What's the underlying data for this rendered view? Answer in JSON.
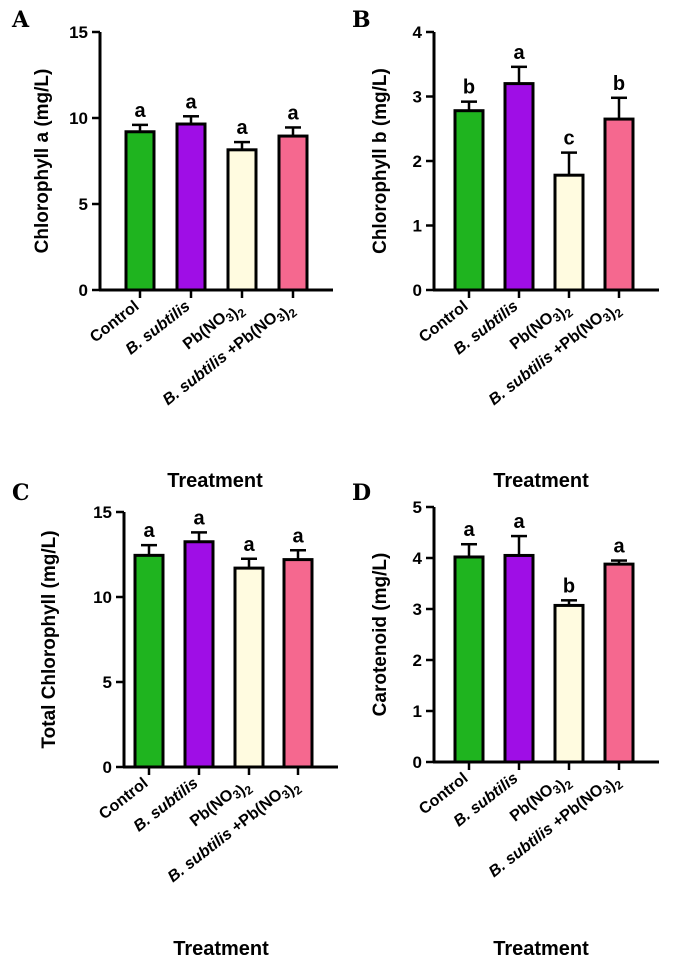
{
  "chart_data": [
    {
      "type": "bar",
      "panel": "A",
      "categories": [
        "Control",
        "B. subtilis",
        "Pb(NO3)2",
        "B. subtilis +Pb(NO3)2"
      ],
      "values": [
        9.2,
        9.65,
        8.15,
        8.95
      ],
      "errors": [
        0.4,
        0.45,
        0.45,
        0.5
      ],
      "significance": [
        "a",
        "a",
        "a",
        "a"
      ],
      "colors": [
        "#1fb41f",
        "#9f0ee6",
        "#fffbe0",
        "#f5688f"
      ],
      "ylabel": "Chlorophyll a (mg/L)",
      "xlabel": "",
      "ylim": [
        0,
        15
      ],
      "yticks": [
        0,
        5,
        10,
        15
      ]
    },
    {
      "type": "bar",
      "panel": "B",
      "categories": [
        "Control",
        "B. subtilis",
        "Pb(NO3)2",
        "B. subtilis +Pb(NO3)2"
      ],
      "values": [
        2.78,
        3.2,
        1.78,
        2.65
      ],
      "errors": [
        0.14,
        0.26,
        0.35,
        0.33
      ],
      "significance": [
        "b",
        "a",
        "c",
        "b"
      ],
      "colors": [
        "#1fb41f",
        "#9f0ee6",
        "#fffbe0",
        "#f5688f"
      ],
      "ylabel": "Chlorophyll b (mg/L)",
      "xlabel": "Treatment",
      "ylim": [
        0,
        4
      ],
      "yticks": [
        0,
        1,
        2,
        3,
        4
      ]
    },
    {
      "type": "bar",
      "panel": "C",
      "categories": [
        "Control",
        "B. subtilis",
        "Pb(NO3)2",
        "B. subtilis +Pb(NO3)2"
      ],
      "values": [
        12.45,
        13.25,
        11.7,
        12.2
      ],
      "errors": [
        0.6,
        0.55,
        0.55,
        0.55
      ],
      "significance": [
        "a",
        "a",
        "a",
        "a"
      ],
      "colors": [
        "#1fb41f",
        "#9f0ee6",
        "#fffbe0",
        "#f5688f"
      ],
      "ylabel": "Total Chlorophyll (mg/L)",
      "xlabel": "Treatment",
      "ylim": [
        0,
        15
      ],
      "yticks": [
        0,
        5,
        10,
        15
      ]
    },
    {
      "type": "bar",
      "panel": "D",
      "categories": [
        "Control",
        "B. subtilis",
        "Pb(NO3)2",
        "B. subtilis +Pb(NO3)2"
      ],
      "values": [
        4.02,
        4.05,
        3.07,
        3.88
      ],
      "errors": [
        0.25,
        0.38,
        0.1,
        0.07
      ],
      "significance": [
        "a",
        "a",
        "b",
        "a"
      ],
      "colors": [
        "#1fb41f",
        "#9f0ee6",
        "#fffbe0",
        "#f5688f"
      ],
      "ylabel": "Carotenoid (mg/L)",
      "xlabel": "Treatment",
      "ylim": [
        0,
        5
      ],
      "yticks": [
        0,
        1,
        2,
        3,
        4,
        5
      ]
    }
  ],
  "bottom_xlabel_left": "Treatment"
}
